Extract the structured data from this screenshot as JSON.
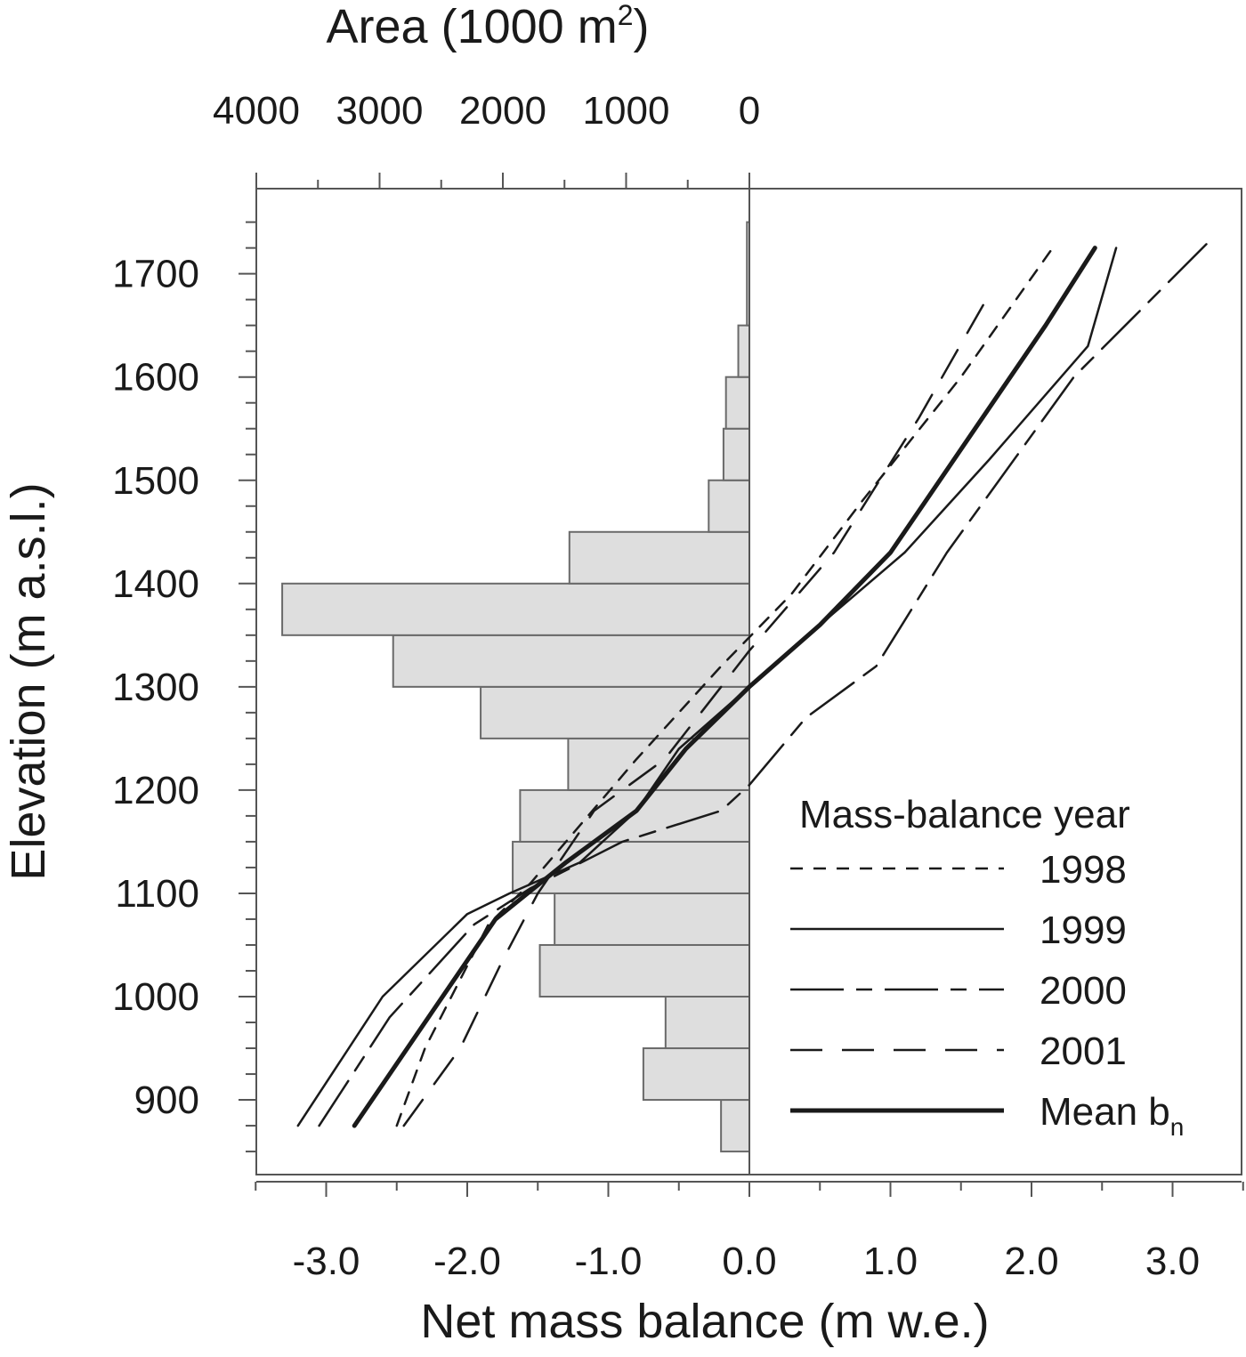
{
  "chart_data": {
    "type": "line",
    "x_axis_bottom": {
      "label": "Net mass balance (m w.e.)",
      "range": [
        -3.5,
        3.5
      ],
      "ticks": [
        -3.0,
        -2.0,
        -1.0,
        0.0,
        1.0,
        2.0,
        3.0
      ],
      "tick_labels": [
        "-3.0",
        "-2.0",
        "-1.0",
        "0.0",
        "1.0",
        "2.0",
        "3.0"
      ]
    },
    "x_axis_top": {
      "label_main": "Area (1000 m",
      "label_sup": "2",
      "label_close": ")",
      "range": [
        0,
        4000
      ],
      "ticks": [
        4000,
        3000,
        2000,
        1000,
        0
      ],
      "tick_labels": [
        "4000",
        "3000",
        "2000",
        "1000",
        "0"
      ]
    },
    "y_axis": {
      "label": "Elevation (m a.s.l.)",
      "range": [
        830,
        1760
      ],
      "ticks": [
        900,
        1000,
        1100,
        1200,
        1300,
        1400,
        1500,
        1600,
        1700
      ],
      "tick_labels": [
        "900",
        "1000",
        "1100",
        "1200",
        "1300",
        "1400",
        "1500",
        "1600",
        "1700"
      ]
    },
    "area_histogram": {
      "bins": [
        {
          "from": 850,
          "to": 900,
          "area": 230
        },
        {
          "from": 900,
          "to": 950,
          "area": 860
        },
        {
          "from": 950,
          "to": 1000,
          "area": 680
        },
        {
          "from": 1000,
          "to": 1050,
          "area": 1700
        },
        {
          "from": 1050,
          "to": 1100,
          "area": 1580
        },
        {
          "from": 1100,
          "to": 1150,
          "area": 1920
        },
        {
          "from": 1150,
          "to": 1200,
          "area": 1860
        },
        {
          "from": 1200,
          "to": 1250,
          "area": 1470
        },
        {
          "from": 1250,
          "to": 1300,
          "area": 2180
        },
        {
          "from": 1300,
          "to": 1350,
          "area": 2890
        },
        {
          "from": 1350,
          "to": 1400,
          "area": 3790
        },
        {
          "from": 1400,
          "to": 1450,
          "area": 1460
        },
        {
          "from": 1450,
          "to": 1500,
          "area": 330
        },
        {
          "from": 1500,
          "to": 1550,
          "area": 210
        },
        {
          "from": 1550,
          "to": 1600,
          "area": 190
        },
        {
          "from": 1600,
          "to": 1650,
          "area": 90
        },
        {
          "from": 1650,
          "to": 1750,
          "area": 20
        }
      ]
    },
    "legend": {
      "title": "Mass-balance year",
      "position": "bottom-right"
    },
    "series": [
      {
        "name": "1998",
        "dash": "14,12",
        "width": 2.5,
        "points": [
          [
            -2.5,
            875
          ],
          [
            -2.3,
            950
          ],
          [
            -1.85,
            1070
          ],
          [
            -1.55,
            1110
          ],
          [
            -0.8,
            1230
          ],
          [
            -0.2,
            1320
          ],
          [
            0.3,
            1390
          ],
          [
            0.8,
            1480
          ],
          [
            1.5,
            1600
          ],
          [
            2.15,
            1725
          ]
        ]
      },
      {
        "name": "1999",
        "dash": "",
        "width": 2.5,
        "points": [
          [
            -3.2,
            875
          ],
          [
            -2.6,
            1000
          ],
          [
            -2.0,
            1080
          ],
          [
            -1.7,
            1100
          ],
          [
            -1.2,
            1130
          ],
          [
            -0.8,
            1180
          ],
          [
            -0.5,
            1240
          ],
          [
            0.0,
            1300
          ],
          [
            0.5,
            1360
          ],
          [
            1.1,
            1430
          ],
          [
            1.7,
            1520
          ],
          [
            2.4,
            1630
          ],
          [
            2.6,
            1725
          ]
        ]
      },
      {
        "name": "2000",
        "dash": "60,14,18,14",
        "width": 2.5,
        "points": [
          [
            -3.05,
            875
          ],
          [
            -2.55,
            980
          ],
          [
            -1.95,
            1070
          ],
          [
            -1.55,
            1105
          ],
          [
            -0.9,
            1150
          ],
          [
            -0.2,
            1180
          ],
          [
            0.0,
            1205
          ],
          [
            0.4,
            1270
          ],
          [
            0.9,
            1320
          ],
          [
            1.4,
            1430
          ],
          [
            2.3,
            1600
          ],
          [
            3.25,
            1730
          ]
        ]
      },
      {
        "name": "2001",
        "dash": "36,22",
        "width": 2.5,
        "points": [
          [
            -2.45,
            875
          ],
          [
            -2.05,
            950
          ],
          [
            -1.75,
            1035
          ],
          [
            -1.5,
            1100
          ],
          [
            -1.1,
            1180
          ],
          [
            -0.6,
            1230
          ],
          [
            0.0,
            1335
          ],
          [
            0.6,
            1430
          ],
          [
            1.2,
            1560
          ],
          [
            1.7,
            1680
          ]
        ]
      },
      {
        "name": "Mean b",
        "name_sub": "n",
        "dash": "",
        "width": 5,
        "points": [
          [
            -2.8,
            875
          ],
          [
            -2.25,
            985
          ],
          [
            -1.8,
            1075
          ],
          [
            -1.3,
            1130
          ],
          [
            -0.8,
            1180
          ],
          [
            -0.45,
            1240
          ],
          [
            0.0,
            1300
          ],
          [
            0.5,
            1360
          ],
          [
            1.0,
            1430
          ],
          [
            1.6,
            1550
          ],
          [
            2.1,
            1650
          ],
          [
            2.45,
            1725
          ]
        ]
      }
    ]
  }
}
